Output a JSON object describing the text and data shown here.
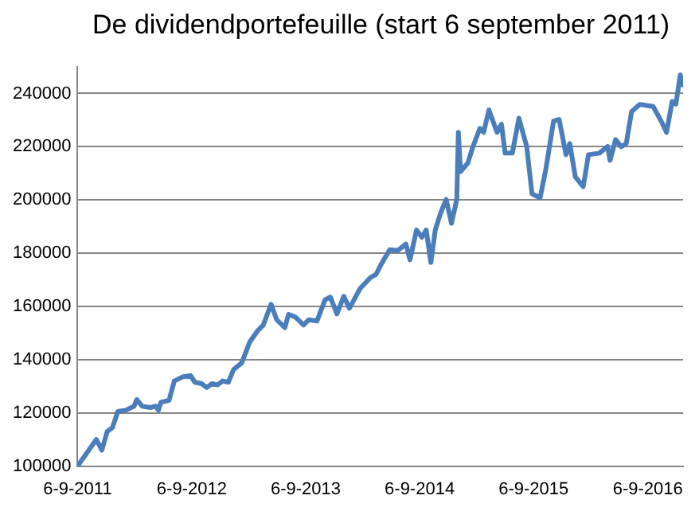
{
  "chart_data": {
    "type": "line",
    "title": "De dividendportefeuille (start 6 september 2011)",
    "x": [
      "2011-09-06",
      "2011-11-05",
      "2011-11-23",
      "2011-12-10",
      "2011-12-27",
      "2012-01-13",
      "2012-02-08",
      "2012-03-05",
      "2012-03-14",
      "2012-03-31",
      "2012-04-26",
      "2012-05-13",
      "2012-05-22",
      "2012-05-30",
      "2012-06-25",
      "2012-07-12",
      "2012-08-07",
      "2012-09-02",
      "2012-09-16",
      "2012-10-07",
      "2012-10-24",
      "2012-11-10",
      "2012-11-27",
      "2012-12-14",
      "2013-01-01",
      "2013-01-18",
      "2013-02-13",
      "2013-03-11",
      "2013-04-06",
      "2013-04-23",
      "2013-05-18",
      "2013-06-05",
      "2013-07-01",
      "2013-07-13",
      "2013-08-04",
      "2013-08-30",
      "2013-09-16",
      "2013-10-12",
      "2013-11-07",
      "2013-11-24",
      "2013-12-15",
      "2014-01-06",
      "2014-01-24",
      "2014-02-27",
      "2014-04-02",
      "2014-04-19",
      "2014-05-07",
      "2014-06-02",
      "2014-06-28",
      "2014-07-24",
      "2014-08-06",
      "2014-08-27",
      "2014-09-13",
      "2014-09-27",
      "2014-10-12",
      "2014-10-26",
      "2014-11-12",
      "2014-11-30",
      "2014-12-17",
      "2015-01-03",
      "2015-01-08",
      "2015-01-15",
      "2015-02-07",
      "2015-02-24",
      "2015-03-18",
      "2015-03-30",
      "2015-04-16",
      "2015-05-12",
      "2015-05-26",
      "2015-06-07",
      "2015-06-30",
      "2015-07-21",
      "2015-08-15",
      "2015-09-01",
      "2015-09-27",
      "2015-10-15",
      "2015-11-09",
      "2015-11-27",
      "2015-12-19",
      "2015-12-31",
      "2016-01-18",
      "2016-02-12",
      "2016-02-29",
      "2016-04-04",
      "2016-04-30",
      "2016-05-08",
      "2016-05-26",
      "2016-06-12",
      "2016-06-29",
      "2016-07-16",
      "2016-08-11",
      "2016-09-23",
      "2016-10-19",
      "2016-11-05",
      "2016-11-23",
      "2016-12-05",
      "2016-12-19",
      "2016-12-27"
    ],
    "series": [
      {
        "color": "#4a7ebb",
        "values": [
          100000,
          110000,
          106000,
          113000,
          114500,
          120500,
          121000,
          122500,
          125000,
          122500,
          122000,
          122500,
          121000,
          124000,
          124700,
          132000,
          133500,
          134000,
          131500,
          131000,
          129500,
          131000,
          130500,
          132000,
          131500,
          136300,
          138800,
          146700,
          151000,
          153000,
          160800,
          155000,
          152000,
          157000,
          156000,
          153000,
          155000,
          154500,
          162500,
          163500,
          157200,
          163800,
          159300,
          166700,
          170900,
          172000,
          176100,
          181300,
          181000,
          183400,
          177500,
          188700,
          186000,
          188700,
          176500,
          188700,
          195000,
          200200,
          191200,
          200200,
          225400,
          210700,
          213800,
          220100,
          226900,
          225400,
          233800,
          225400,
          228500,
          217600,
          217600,
          230700,
          220100,
          202300,
          200800,
          211300,
          229600,
          230200,
          217000,
          221200,
          208600,
          205000,
          217000,
          217600,
          220100,
          214900,
          222700,
          220000,
          221200,
          233200,
          235900,
          235100,
          229600,
          225400,
          237000,
          236000,
          247000,
          243200
        ]
      }
    ],
    "xlim": [
      "2011-09-06",
      "2016-12-28"
    ],
    "xticks": [
      {
        "value": "2011-09-06",
        "label": "6-9-2011"
      },
      {
        "value": "2012-09-06",
        "label": "6-9-2012"
      },
      {
        "value": "2013-09-06",
        "label": "6-9-2013"
      },
      {
        "value": "2014-09-06",
        "label": "6-9-2014"
      },
      {
        "value": "2015-09-06",
        "label": "6-9-2015"
      },
      {
        "value": "2016-09-06",
        "label": "6-9-2016"
      }
    ],
    "ylim": [
      100000,
      250000
    ],
    "yticks": [
      100000,
      120000,
      140000,
      160000,
      180000,
      200000,
      220000,
      240000
    ],
    "grid": "y",
    "legend": false,
    "marker": "none",
    "line_style": "solid"
  }
}
